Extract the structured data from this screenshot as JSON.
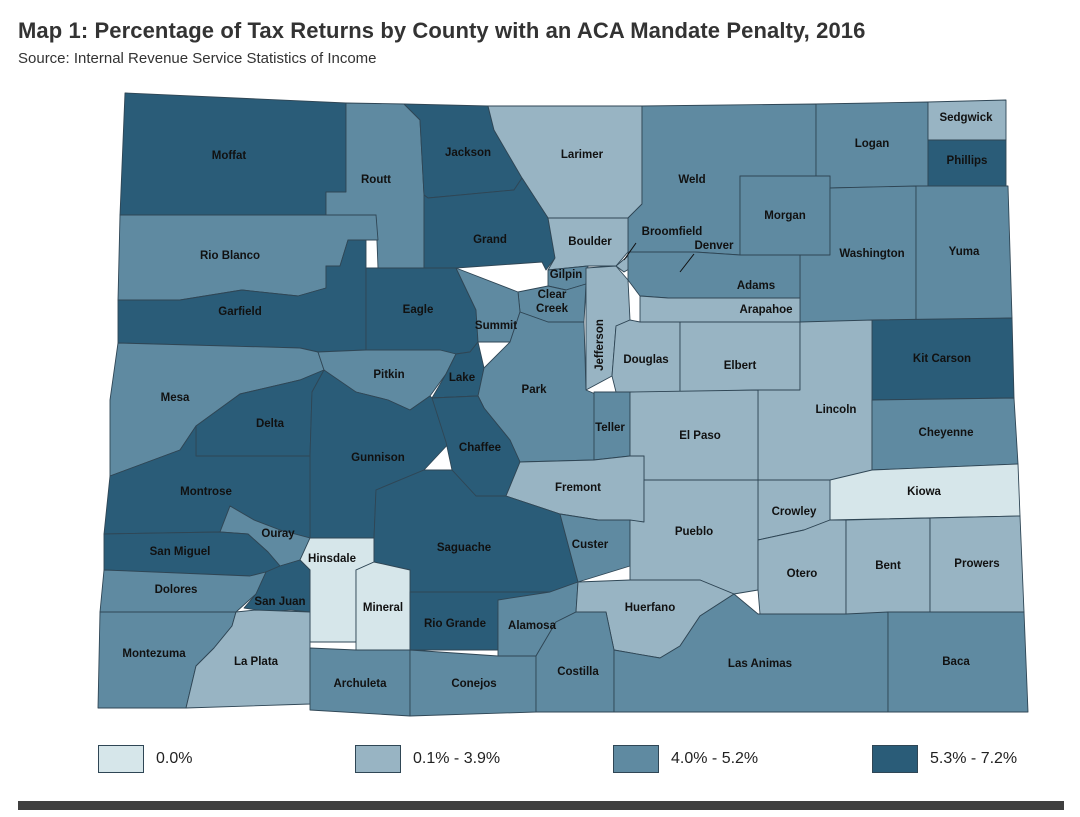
{
  "title": "Map 1: Percentage of Tax Returns by County with an ACA Mandate Penalty, 2016",
  "subtitle": "Source: Internal Revenue Service Statistics of Income",
  "colors": {
    "cat0": "#d6e6ea",
    "cat1": "#98b4c3",
    "cat2": "#5f8aa1",
    "cat3": "#2a5c78"
  },
  "legend": [
    {
      "label": "0.0%",
      "category": "cat0"
    },
    {
      "label": "0.1% - 3.9%",
      "category": "cat1"
    },
    {
      "label": "4.0% - 5.2%",
      "category": "cat2"
    },
    {
      "label": "5.3% - 7.2%",
      "category": "cat3"
    }
  ],
  "counties": [
    {
      "name": "Moffat",
      "category": "cat3"
    },
    {
      "name": "Routt",
      "category": "cat2"
    },
    {
      "name": "Jackson",
      "category": "cat3"
    },
    {
      "name": "Larimer",
      "category": "cat1"
    },
    {
      "name": "Weld",
      "category": "cat2"
    },
    {
      "name": "Logan",
      "category": "cat2"
    },
    {
      "name": "Sedgwick",
      "category": "cat1"
    },
    {
      "name": "Phillips",
      "category": "cat3"
    },
    {
      "name": "Rio Blanco",
      "category": "cat2"
    },
    {
      "name": "Grand",
      "category": "cat3"
    },
    {
      "name": "Boulder",
      "category": "cat1"
    },
    {
      "name": "Broomfield",
      "category": "cat1"
    },
    {
      "name": "Denver",
      "category": "cat1"
    },
    {
      "name": "Morgan",
      "category": "cat2"
    },
    {
      "name": "Washington",
      "category": "cat2"
    },
    {
      "name": "Yuma",
      "category": "cat2"
    },
    {
      "name": "Garfield",
      "category": "cat3"
    },
    {
      "name": "Eagle",
      "category": "cat3"
    },
    {
      "name": "Gilpin",
      "category": "cat2"
    },
    {
      "name": "Clear Creek",
      "category": "cat2"
    },
    {
      "name": "Summit",
      "category": "cat2"
    },
    {
      "name": "Adams",
      "category": "cat2"
    },
    {
      "name": "Arapahoe",
      "category": "cat1"
    },
    {
      "name": "Jefferson",
      "category": "cat1"
    },
    {
      "name": "Douglas",
      "category": "cat1"
    },
    {
      "name": "Elbert",
      "category": "cat1"
    },
    {
      "name": "Kit Carson",
      "category": "cat3"
    },
    {
      "name": "Mesa",
      "category": "cat2"
    },
    {
      "name": "Pitkin",
      "category": "cat2"
    },
    {
      "name": "Lake",
      "category": "cat3"
    },
    {
      "name": "Park",
      "category": "cat2"
    },
    {
      "name": "Lincoln",
      "category": "cat1"
    },
    {
      "name": "Delta",
      "category": "cat3"
    },
    {
      "name": "Teller",
      "category": "cat2"
    },
    {
      "name": "El Paso",
      "category": "cat1"
    },
    {
      "name": "Cheyenne",
      "category": "cat2"
    },
    {
      "name": "Gunnison",
      "category": "cat3"
    },
    {
      "name": "Chaffee",
      "category": "cat3"
    },
    {
      "name": "Fremont",
      "category": "cat1"
    },
    {
      "name": "Kiowa",
      "category": "cat0"
    },
    {
      "name": "Montrose",
      "category": "cat3"
    },
    {
      "name": "Crowley",
      "category": "cat1"
    },
    {
      "name": "Ouray",
      "category": "cat2"
    },
    {
      "name": "San Miguel",
      "category": "cat3"
    },
    {
      "name": "Hinsdale",
      "category": "cat0"
    },
    {
      "name": "Saguache",
      "category": "cat3"
    },
    {
      "name": "Custer",
      "category": "cat2"
    },
    {
      "name": "Pueblo",
      "category": "cat1"
    },
    {
      "name": "Otero",
      "category": "cat1"
    },
    {
      "name": "Bent",
      "category": "cat1"
    },
    {
      "name": "Prowers",
      "category": "cat1"
    },
    {
      "name": "Dolores",
      "category": "cat2"
    },
    {
      "name": "San Juan",
      "category": "cat3"
    },
    {
      "name": "Mineral",
      "category": "cat0"
    },
    {
      "name": "Rio Grande",
      "category": "cat3"
    },
    {
      "name": "Alamosa",
      "category": "cat2"
    },
    {
      "name": "Huerfano",
      "category": "cat1"
    },
    {
      "name": "Montezuma",
      "category": "cat2"
    },
    {
      "name": "La Plata",
      "category": "cat1"
    },
    {
      "name": "Archuleta",
      "category": "cat2"
    },
    {
      "name": "Conejos",
      "category": "cat2"
    },
    {
      "name": "Costilla",
      "category": "cat2"
    },
    {
      "name": "Las Animas",
      "category": "cat2"
    },
    {
      "name": "Baca",
      "category": "cat2"
    }
  ]
}
